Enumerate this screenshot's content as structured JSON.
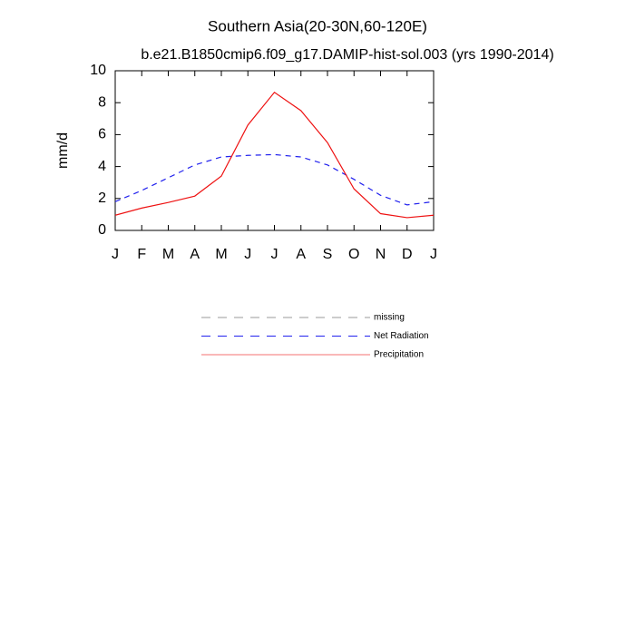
{
  "chart_data": {
    "type": "line",
    "title": "Southern Asia(20-30N,60-120E)",
    "subtitle": "b.e21.B1850cmip6.f09_g17.DAMIP-hist-sol.003 (yrs 1990-2014)",
    "y_label": "mm/d",
    "categories": [
      "J",
      "F",
      "M",
      "A",
      "M",
      "J",
      "J",
      "A",
      "S",
      "O",
      "N",
      "D",
      "J"
    ],
    "series": [
      {
        "name": "missing",
        "color": "#999999",
        "dash": true,
        "values": [
          null,
          null,
          null,
          null,
          null,
          null,
          null,
          null,
          null,
          null,
          null,
          null,
          null
        ]
      },
      {
        "name": "Net Radiation",
        "color": "#2222ee",
        "dash": true,
        "values": [
          1.8,
          2.5,
          3.3,
          4.1,
          4.6,
          4.7,
          4.75,
          4.6,
          4.1,
          3.2,
          2.2,
          1.6,
          1.8
        ]
      },
      {
        "name": "Precipitation",
        "color": "#ee1111",
        "dash": false,
        "values": [
          0.95,
          1.4,
          1.75,
          2.15,
          3.4,
          6.6,
          8.65,
          7.5,
          5.5,
          2.6,
          1.05,
          0.8,
          0.95
        ]
      }
    ],
    "ylim": [
      0,
      10
    ],
    "yticks": [
      0,
      2,
      4,
      6,
      8,
      10
    ],
    "grid": false
  }
}
